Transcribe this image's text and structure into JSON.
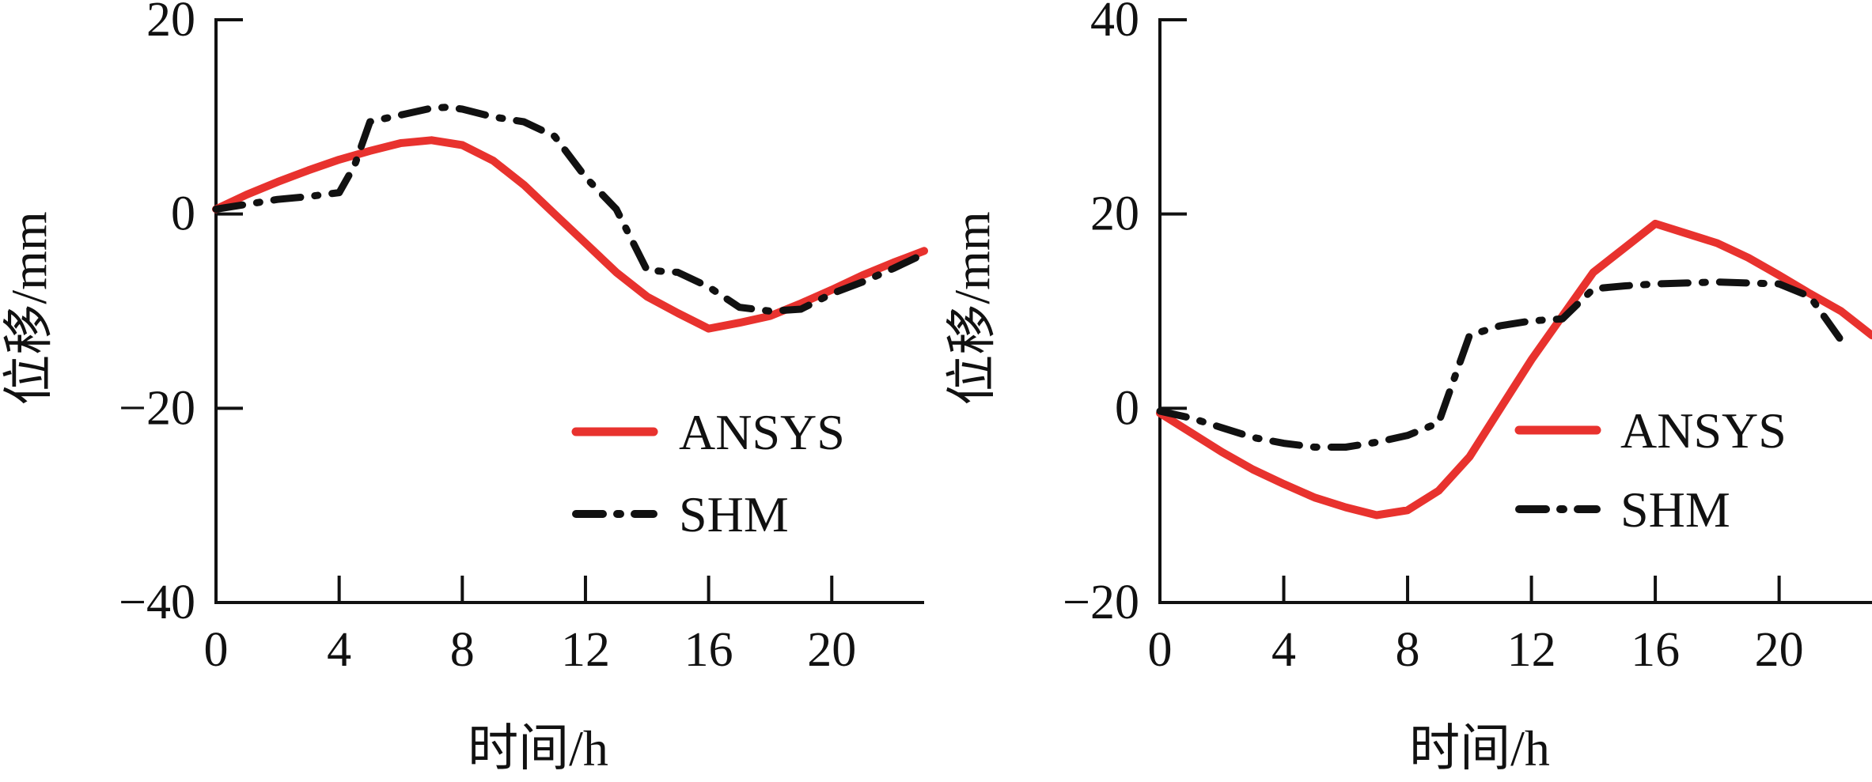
{
  "colors": {
    "ansys": "#e8322e",
    "shm": "#111111",
    "axis": "#111111"
  },
  "chart_data": [
    {
      "type": "line",
      "xlabel": "时间/h",
      "ylabel": "位移/mm",
      "xlim": [
        0,
        23
      ],
      "ylim": [
        -40,
        20
      ],
      "xticks": [
        0,
        4,
        8,
        12,
        16,
        20
      ],
      "yticks": [
        -40,
        -20,
        0,
        20
      ],
      "xtick_labels": [
        "0",
        "4",
        "8",
        "12",
        "16",
        "20"
      ],
      "ytick_labels": [
        "−40",
        "−20",
        "0",
        "20"
      ],
      "legend": {
        "position": "lower-right",
        "entries": [
          "ANSYS",
          "SHM"
        ]
      },
      "series": [
        {
          "name": "ANSYS",
          "style": "solid",
          "x": [
            0,
            1,
            2,
            3,
            4,
            5,
            6,
            7,
            8,
            9,
            10,
            11,
            12,
            13,
            14,
            15,
            16,
            17,
            18,
            19,
            20,
            21,
            22,
            23
          ],
          "y": [
            0.5,
            2,
            3.3,
            4.5,
            5.6,
            6.5,
            7.3,
            7.6,
            7.1,
            5.5,
            3,
            0,
            -3,
            -6,
            -8.5,
            -10.2,
            -11.8,
            -11.2,
            -10.5,
            -9.2,
            -7.8,
            -6.3,
            -5,
            -3.8
          ]
        },
        {
          "name": "SHM",
          "style": "dash-dot",
          "x": [
            0,
            1,
            2,
            3,
            4,
            4.5,
            5,
            6,
            7,
            7.5,
            8,
            9,
            10,
            11,
            12,
            13,
            14,
            15,
            16,
            17,
            18,
            19,
            20,
            21,
            22,
            23
          ],
          "y": [
            0.5,
            1,
            1.5,
            1.8,
            2.2,
            5,
            9.5,
            10.2,
            10.9,
            11,
            10.8,
            10,
            9.5,
            8,
            3.8,
            0.5,
            -5.8,
            -6,
            -7.5,
            -9.6,
            -10,
            -9.8,
            -8.2,
            -7,
            -5.6,
            -4.1
          ]
        }
      ]
    },
    {
      "type": "line",
      "xlabel": "时间/h",
      "ylabel": "位移/mm",
      "xlim": [
        0,
        23
      ],
      "ylim": [
        -20,
        40
      ],
      "xticks": [
        0,
        4,
        8,
        12,
        16,
        20
      ],
      "yticks": [
        -20,
        0,
        20,
        40
      ],
      "xtick_labels": [
        "0",
        "4",
        "8",
        "12",
        "16",
        "20"
      ],
      "ytick_labels": [
        "−20",
        "0",
        "20",
        "40"
      ],
      "legend": {
        "position": "lower-right",
        "entries": [
          "ANSYS",
          "SHM"
        ]
      },
      "series": [
        {
          "name": "ANSYS",
          "style": "solid",
          "x": [
            0,
            1,
            2,
            3,
            4,
            5,
            6,
            7,
            8,
            9,
            10,
            11,
            12,
            13,
            14,
            15,
            16,
            17,
            18,
            19,
            20,
            21,
            22,
            23
          ],
          "y": [
            -0.5,
            -2.5,
            -4.5,
            -6.3,
            -7.8,
            -9.2,
            -10.2,
            -11,
            -10.5,
            -8.5,
            -5,
            0,
            5,
            9.5,
            14,
            16.5,
            19,
            18,
            17,
            15.5,
            13.7,
            11.8,
            10,
            7.5
          ]
        },
        {
          "name": "SHM",
          "style": "dash-dot",
          "x": [
            0,
            1,
            2,
            3,
            4,
            5,
            6,
            7,
            8,
            9,
            9.5,
            10,
            11,
            12,
            13,
            14,
            15,
            16,
            17,
            18,
            19,
            20,
            21,
            22
          ],
          "y": [
            -0.3,
            -1,
            -2,
            -3,
            -3.6,
            -4,
            -4,
            -3.5,
            -2.8,
            -1.5,
            3,
            7.5,
            8.5,
            9,
            9.2,
            12.3,
            12.6,
            12.8,
            12.9,
            13,
            12.9,
            12.8,
            11.5,
            7
          ]
        }
      ]
    }
  ]
}
